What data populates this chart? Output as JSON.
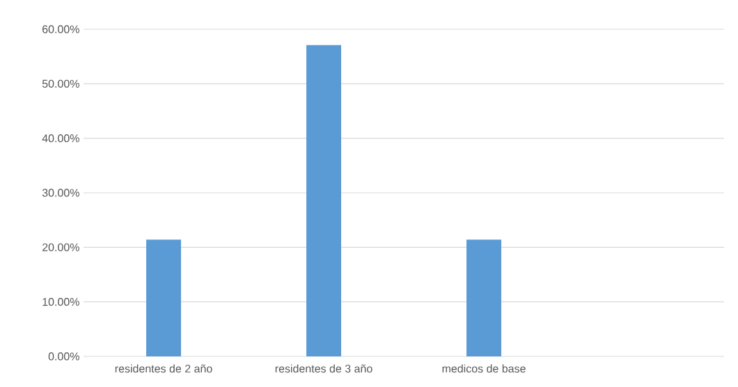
{
  "chart_data": {
    "type": "bar",
    "categories": [
      "residentes de 2 año",
      "residentes de 3 año",
      "medicos de base",
      null
    ],
    "values": [
      21.4,
      57.1,
      21.4,
      null
    ],
    "color": "#5b9bd5",
    "ylim": [
      0,
      60
    ],
    "yticks": [
      {
        "value": 0,
        "label": "0.00%"
      },
      {
        "value": 10,
        "label": "10.00%"
      },
      {
        "value": 20,
        "label": "20.00%"
      },
      {
        "value": 30,
        "label": "30.00%"
      },
      {
        "value": 40,
        "label": "40.00%"
      },
      {
        "value": 50,
        "label": "50.00%"
      },
      {
        "value": 60,
        "label": "60.00%"
      }
    ],
    "grid": "y"
  }
}
